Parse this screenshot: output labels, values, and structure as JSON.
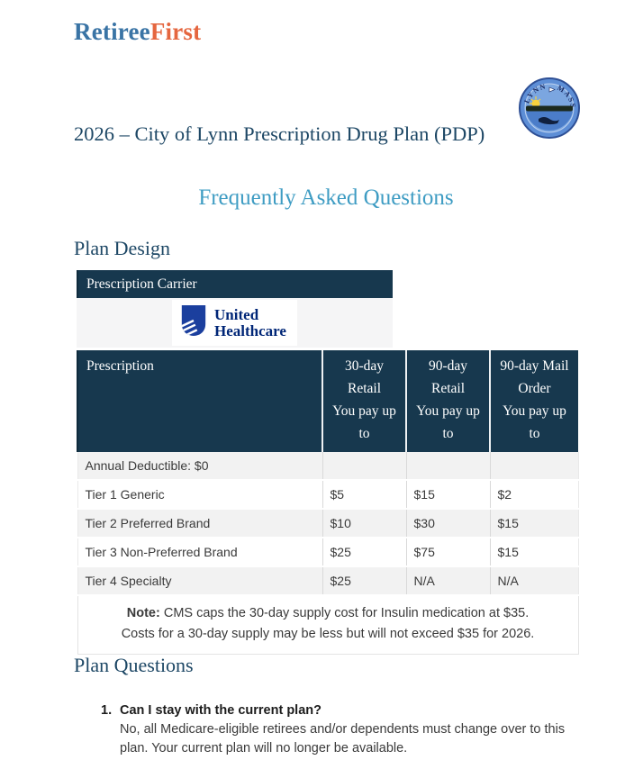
{
  "brand": {
    "name_part1": "Retiree",
    "name_part2": "First",
    "color_blue": "#3a74a5",
    "color_orange": "#e5663f"
  },
  "seal": {
    "text_left": "LYNN",
    "text_right": "MASS"
  },
  "title": "2026 – City of Lynn Prescription Drug Plan (PDP)",
  "subtitle": "Frequently Asked Questions",
  "sections": {
    "plan_design": "Plan Design",
    "plan_questions": "Plan Questions"
  },
  "colors": {
    "table_header_navy": "#17384e",
    "heading_navy": "#1d4765",
    "subtitle_blue": "#3e9cc3",
    "row_alt_gray": "#f2f2f2",
    "uhc_navy": "#002677",
    "uhc_shield_blue": "#1b3f9e"
  },
  "carrier": {
    "header": "Prescription Carrier",
    "name_line1": "United",
    "name_line2": "Healthcare"
  },
  "plan_table": {
    "columns": [
      {
        "label": "Prescription"
      },
      {
        "label": "30-day Retail You pay up to",
        "lines": [
          "30-day",
          "Retail",
          "You pay up",
          "to"
        ]
      },
      {
        "label": "90-day Retail You pay up to",
        "lines": [
          "90-day",
          "Retail",
          "You pay up",
          "to"
        ]
      },
      {
        "label": "90-day Mail Order You pay up to",
        "lines": [
          "90-day Mail",
          "Order",
          "You pay up",
          "to"
        ]
      }
    ],
    "rows": [
      {
        "label": "Annual Deductible: $0",
        "values": [
          "",
          "",
          ""
        ]
      },
      {
        "label": "Tier 1 Generic",
        "values": [
          "$5",
          "$15",
          "$2"
        ]
      },
      {
        "label": "Tier 2 Preferred Brand",
        "values": [
          "$10",
          "$30",
          "$15"
        ]
      },
      {
        "label": "Tier 3 Non-Preferred Brand",
        "values": [
          "$25",
          "$75",
          "$15"
        ]
      },
      {
        "label": "Tier 4 Specialty",
        "values": [
          "$25",
          "N/A",
          "N/A"
        ]
      }
    ],
    "note_label": "Note:",
    "note_line1": " CMS caps the 30-day supply cost for Insulin medication at $35.",
    "note_line2": "Costs for a 30-day supply may be less but will not exceed $35 for 2026."
  },
  "questions": [
    {
      "number": "1.",
      "question": "Can I stay with the current plan?",
      "answer": "No, all Medicare-eligible retirees and/or dependents must change over to this plan. Your current plan will no longer be available."
    }
  ]
}
